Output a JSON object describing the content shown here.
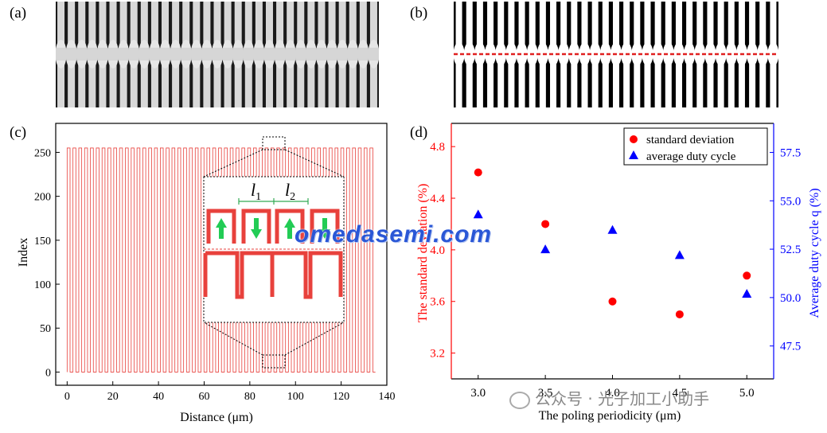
{
  "panels": {
    "a": "(a)",
    "b": "(b)",
    "c": "(c)",
    "d": "(d)"
  },
  "watermark": "omedasemi.com",
  "wechat_caption": "公众号 · 光子加工小助手",
  "chart_data": [
    {
      "id": "c",
      "type": "line",
      "xlabel": "Distance (μm)",
      "ylabel": "Index",
      "xlim": [
        -5,
        140
      ],
      "ylim": [
        -15,
        283
      ],
      "xticks": [
        0,
        20,
        40,
        60,
        80,
        100,
        120,
        140
      ],
      "yticks": [
        0,
        50,
        100,
        150,
        200,
        250
      ],
      "series": [
        {
          "color": "#e8413c",
          "pulse_period": 2.55,
          "duty": 0.5,
          "high": 255,
          "low": 0,
          "x_start": 0,
          "x_end": 135
        }
      ],
      "inset": {
        "labels": [
          "l",
          "1",
          "l",
          "2"
        ],
        "arrow_color": "#22cc55",
        "domain_color": "#e8413c"
      }
    },
    {
      "id": "d",
      "type": "scatter",
      "xlabel": "The poling periodicity (μm)",
      "ylabel": "The standard deviation (%)",
      "y2label": "Average duty cycle q (%)",
      "xlim": [
        2.8,
        5.2
      ],
      "ylim": [
        3.0,
        4.98
      ],
      "y2lim": [
        45.8,
        59.0
      ],
      "xticks": [
        "3.0",
        "3.5",
        "4.0",
        "4.5",
        "5.0"
      ],
      "yticks": [
        "3.2",
        "3.6",
        "4.0",
        "4.4",
        "4.8"
      ],
      "y2ticks": [
        "47.5",
        "50.0",
        "52.5",
        "55.0",
        "57.5"
      ],
      "legend_position": "top-right",
      "series": [
        {
          "name": "standard deviation",
          "axis": "left",
          "marker": "circle",
          "color": "#ff0000",
          "x": [
            3.0,
            3.5,
            4.0,
            4.5,
            5.0
          ],
          "values": [
            4.6,
            4.2,
            3.6,
            3.5,
            3.8
          ]
        },
        {
          "name": "average duty cycle",
          "axis": "right",
          "marker": "triangle",
          "color": "#0000ff",
          "x": [
            3.0,
            3.5,
            4.0,
            4.5,
            5.0
          ],
          "values": [
            54.3,
            52.5,
            53.5,
            52.2,
            50.2
          ]
        }
      ]
    }
  ]
}
